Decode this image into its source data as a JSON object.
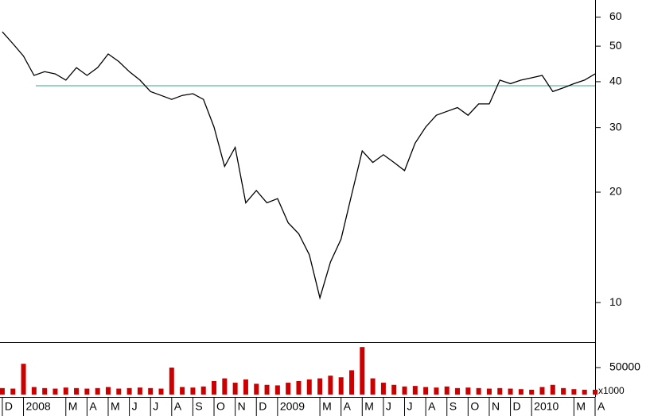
{
  "chart_data": {
    "type": "line",
    "x": [
      0,
      0.5,
      1,
      1.5,
      2,
      2.5,
      3,
      3.5,
      4,
      4.5,
      5,
      5.5,
      6,
      6.5,
      7,
      7.5,
      8,
      8.5,
      9,
      9.5,
      10,
      10.5,
      11,
      11.5,
      12,
      12.5,
      13,
      13.5,
      14,
      14.5,
      15,
      15.5,
      16,
      16.5,
      17,
      17.5,
      18,
      18.5,
      19,
      19.5,
      20,
      20.5,
      21,
      21.5,
      22,
      22.5,
      23,
      23.5,
      24,
      24.5,
      25,
      25.5,
      26,
      26.5,
      27,
      27.5,
      28
    ],
    "xlim": [
      -0.11,
      28
    ],
    "xticks": [
      {
        "value": 0,
        "label": "D"
      },
      {
        "value": 1,
        "label": "2008"
      },
      {
        "value": 3,
        "label": "M"
      },
      {
        "value": 4,
        "label": "A"
      },
      {
        "value": 5,
        "label": "M"
      },
      {
        "value": 6,
        "label": "J"
      },
      {
        "value": 7,
        "label": "J"
      },
      {
        "value": 8,
        "label": "A"
      },
      {
        "value": 9,
        "label": "S"
      },
      {
        "value": 10,
        "label": "O"
      },
      {
        "value": 11,
        "label": "N"
      },
      {
        "value": 12,
        "label": "D"
      },
      {
        "value": 13,
        "label": "2009"
      },
      {
        "value": 15,
        "label": "M"
      },
      {
        "value": 16,
        "label": "A"
      },
      {
        "value": 17,
        "label": "M"
      },
      {
        "value": 18,
        "label": "J"
      },
      {
        "value": 19,
        "label": "J"
      },
      {
        "value": 20,
        "label": "A"
      },
      {
        "value": 21,
        "label": "S"
      },
      {
        "value": 22,
        "label": "O"
      },
      {
        "value": 23,
        "label": "N"
      },
      {
        "value": 24,
        "label": "D"
      },
      {
        "value": 25,
        "label": "2010"
      },
      {
        "value": 27,
        "label": "M"
      },
      {
        "value": 28,
        "label": "A"
      }
    ],
    "ylim": [
      7.8,
      66.8
    ],
    "yticks": [
      10,
      20,
      30,
      40,
      50,
      60
    ],
    "log_y": true,
    "y2lim": [
      0,
      95600
    ],
    "y2ticks": [
      50000
    ],
    "y2_label": "x1000",
    "hline": 39,
    "hline_color": "#3aa58c",
    "series": [
      {
        "color": "#000000",
        "values": [
          54.7,
          50.8,
          47,
          41.6,
          42.6,
          42,
          40.4,
          43.7,
          41.6,
          43.7,
          47.6,
          45.4,
          42.6,
          40.4,
          37.6,
          36.7,
          35.8,
          36.7,
          37.1,
          35.8,
          30.1,
          23.5,
          26.5,
          18.7,
          20.2,
          18.7,
          19.2,
          16.5,
          15.4,
          13.5,
          10.3,
          12.9,
          14.9,
          19.7,
          25.9,
          24.1,
          25.3,
          24.1,
          22.9,
          27.2,
          30.1,
          32.4,
          33.2,
          34,
          32.4,
          34.8,
          34.8,
          40.4,
          39.5,
          40.4,
          41,
          41.6,
          37.6,
          38.5,
          39.5,
          40.4,
          42
        ]
      },
      {
        "color": "#cc0000",
        "axis": "y2",
        "type": "bar",
        "values": [
          12000,
          11000,
          57000,
          14000,
          12000,
          11000,
          13000,
          12000,
          11000,
          12000,
          14000,
          11000,
          12000,
          13000,
          12000,
          11000,
          50000,
          14000,
          13000,
          15000,
          25000,
          30000,
          22000,
          28000,
          20000,
          18000,
          17000,
          22000,
          25000,
          28000,
          30000,
          35000,
          32000,
          45000,
          88000,
          30000,
          22000,
          18000,
          15000,
          16000,
          14000,
          13000,
          15000,
          12000,
          13000,
          12000,
          11000,
          12000,
          11000,
          10000,
          9000,
          14000,
          18000,
          12000,
          10000,
          9000,
          9000
        ]
      }
    ]
  }
}
